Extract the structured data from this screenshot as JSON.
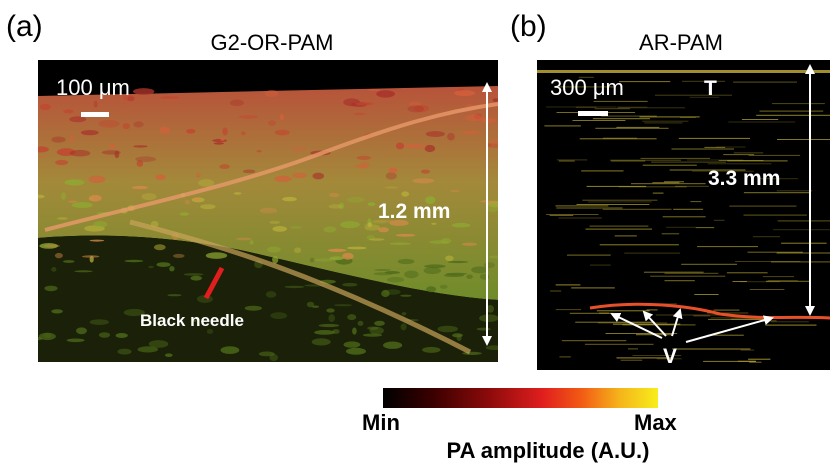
{
  "figure": {
    "panel_a": {
      "letter": "(a)",
      "title": "G2-OR-PAM",
      "scalebar_label": "100 μm",
      "depth_label": "1.2 mm",
      "needle_label": "Black needle"
    },
    "panel_b": {
      "letter": "(b)",
      "title": "AR-PAM",
      "scalebar_label": "300 μm",
      "top_label": "T",
      "depth_label": "3.3 mm",
      "vessel_label": "V"
    },
    "colorbar": {
      "min_label": "Min",
      "max_label": "Max",
      "title": "PA amplitude (A.U.)",
      "colors": [
        "#000000",
        "#3a0000",
        "#8a0a0a",
        "#e01e1e",
        "#f25a14",
        "#f5b41a",
        "#f7ee1a"
      ]
    }
  }
}
